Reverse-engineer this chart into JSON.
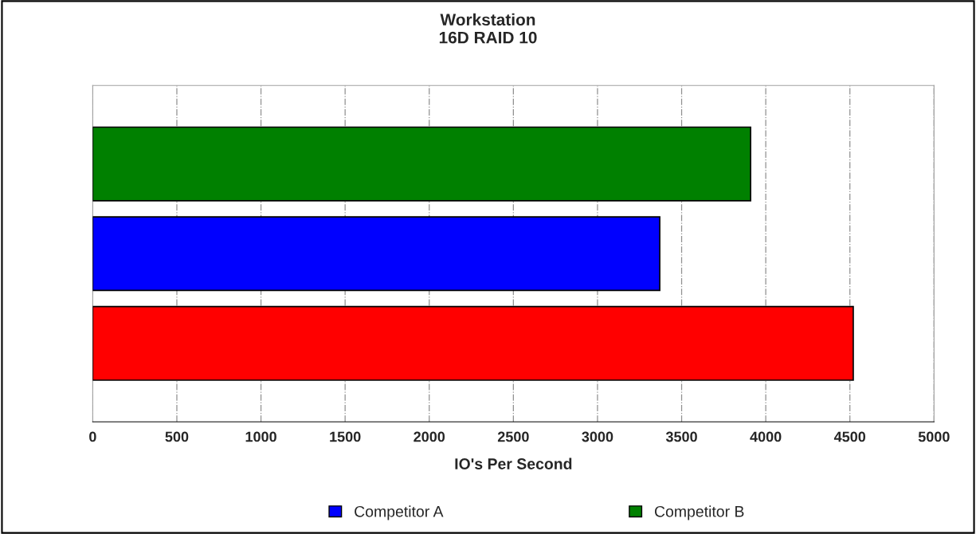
{
  "chart_data": {
    "type": "bar",
    "orientation": "horizontal",
    "title": "Workstation\n16D RAID 10",
    "xlabel": "IO's Per Second",
    "categories": [
      null
    ],
    "series": [
      {
        "color": "#ff0000",
        "values": [
          4520
        ]
      },
      {
        "name": "Competitor A",
        "color": "#0000ff",
        "values": [
          3370
        ]
      },
      {
        "name": "Competitor B",
        "color": "#008000",
        "values": [
          3910
        ]
      }
    ],
    "xlim": [
      0,
      5000
    ],
    "xticks": [
      0,
      500,
      1000,
      1500,
      2000,
      2500,
      3000,
      3500,
      4000,
      4500,
      5000
    ],
    "grid": "x",
    "legend": "bottom"
  }
}
